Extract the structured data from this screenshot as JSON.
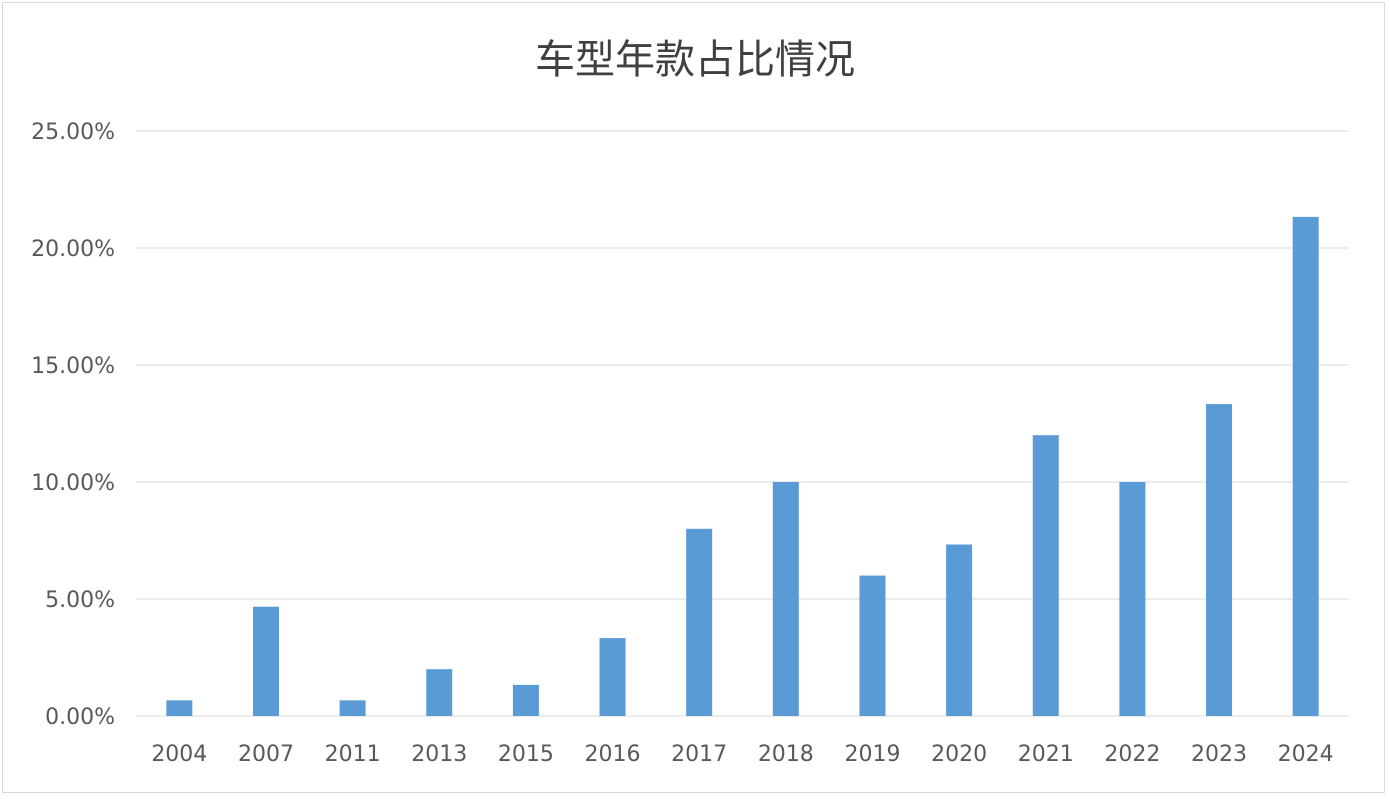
{
  "chart_data": {
    "type": "bar",
    "title": "车型年款占比情况",
    "xlabel": "",
    "ylabel": "",
    "categories": [
      "2004",
      "2007",
      "2011",
      "2013",
      "2015",
      "2016",
      "2017",
      "2018",
      "2019",
      "2020",
      "2021",
      "2022",
      "2023",
      "2024"
    ],
    "values": [
      0.67,
      4.67,
      0.67,
      2.0,
      1.33,
      3.33,
      8.0,
      10.0,
      6.0,
      7.33,
      12.0,
      10.0,
      13.33,
      21.33
    ],
    "ylim": [
      0,
      25
    ],
    "yticks": [
      0,
      5,
      10,
      15,
      20,
      25
    ],
    "ytick_labels": [
      "0.00%",
      "5.00%",
      "10.00%",
      "15.00%",
      "20.00%",
      "25.00%"
    ],
    "bar_color": "#5b9bd5",
    "grid": true,
    "legend": "none"
  }
}
